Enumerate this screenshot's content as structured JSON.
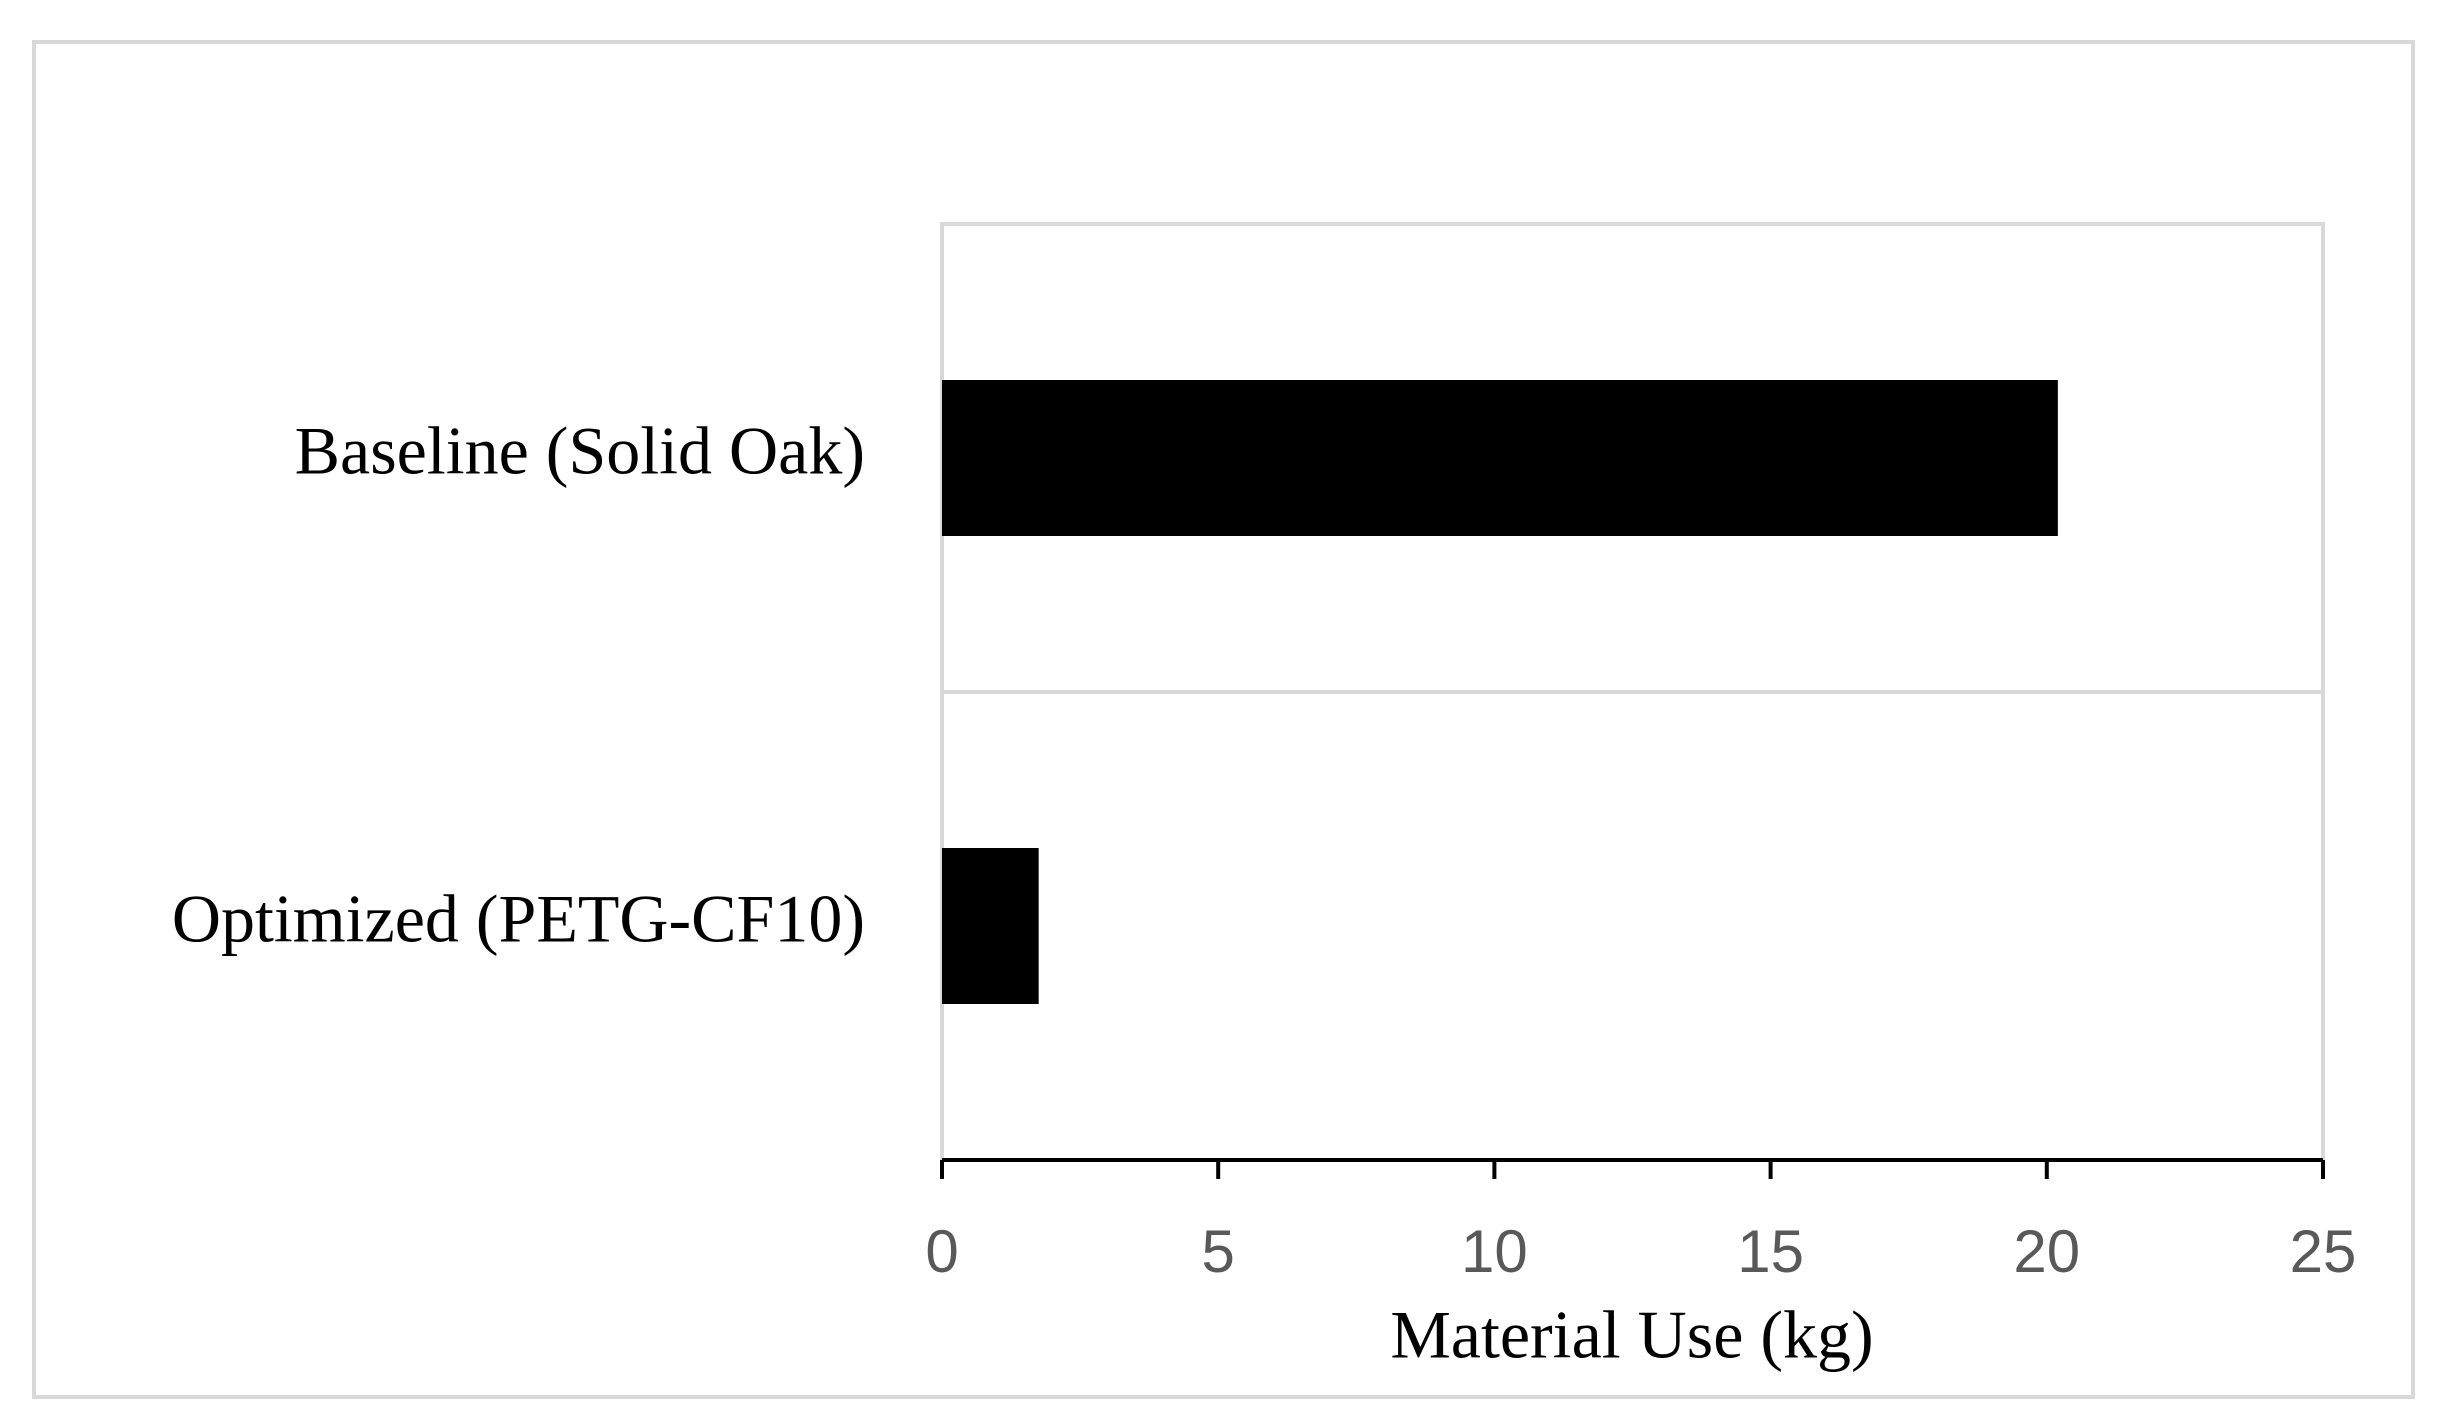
{
  "chart_data": {
    "type": "hbar",
    "categories": [
      "Baseline (Solid Oak)",
      "Optimized (PETG-CF10)"
    ],
    "values": [
      20.2,
      1.75
    ],
    "color": "#000000",
    "x_label": "Material Use (kg)",
    "xlim": [
      0,
      25
    ],
    "xticks": [
      0,
      5,
      10,
      15,
      20,
      25
    ]
  }
}
